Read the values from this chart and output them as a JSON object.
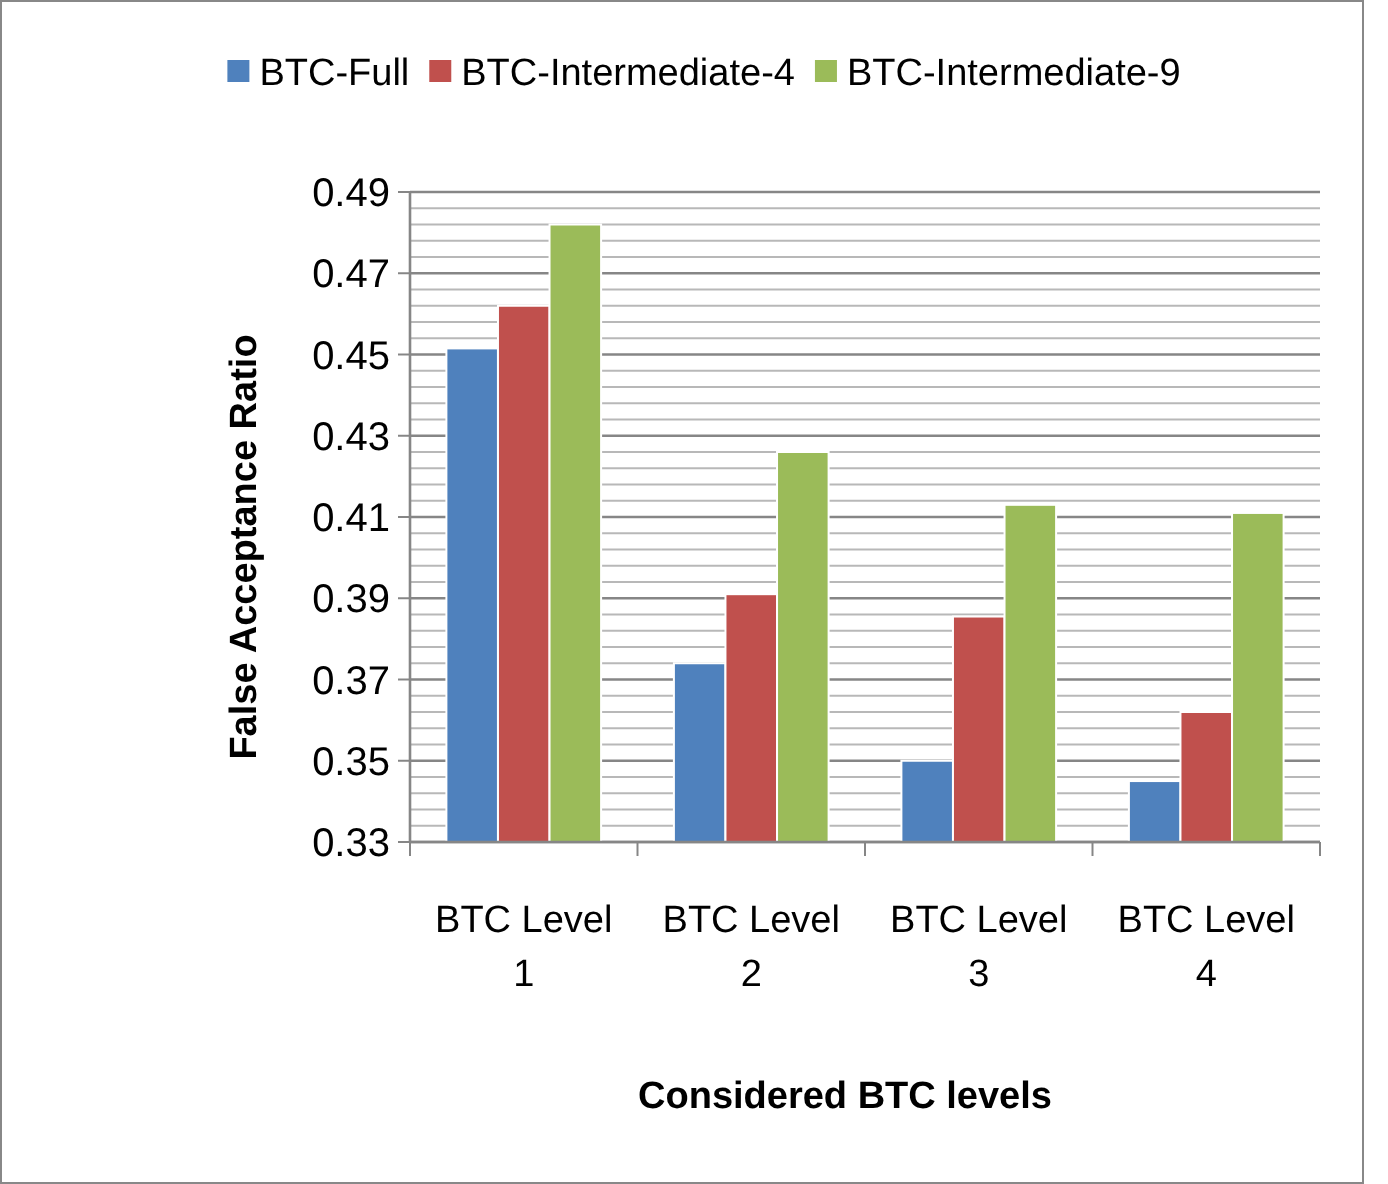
{
  "chart_data": {
    "type": "bar",
    "xlabel": "Considered BTC levels",
    "ylabel": "False Acceptance Ratio",
    "categories": [
      "BTC Level 1",
      "BTC Level 2",
      "BTC Level 3",
      "BTC Level 4"
    ],
    "series": [
      {
        "name": "BTC-Full",
        "color": "#4f81bd",
        "values": [
          0.4515,
          0.374,
          0.35,
          0.345
        ]
      },
      {
        "name": "BTC-Intermediate-4",
        "color": "#c0504d",
        "values": [
          0.462,
          0.391,
          0.3855,
          0.362
        ]
      },
      {
        "name": "BTC-Intermediate-9",
        "color": "#9bbb59",
        "values": [
          0.482,
          0.426,
          0.413,
          0.411
        ]
      }
    ],
    "ylim": [
      0.33,
      0.49
    ],
    "yticks": [
      0.33,
      0.35,
      0.37,
      0.39,
      0.41,
      0.43,
      0.45,
      0.47,
      0.49
    ],
    "grid": "y",
    "legend": "top"
  }
}
